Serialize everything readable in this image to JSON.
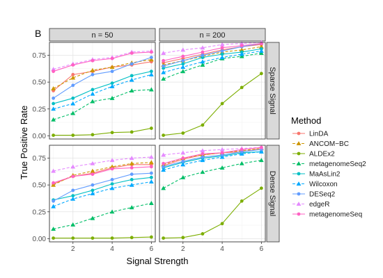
{
  "figure": {
    "panel_tag": "B",
    "ylabel": "True Positive Rate",
    "xlabel": "Signal Strength",
    "legend_title": "Method"
  },
  "chart_data": {
    "type": "line",
    "x": [
      1,
      2,
      3,
      4,
      5,
      6
    ],
    "xlim": [
      0.8,
      6.2
    ],
    "ylim": [
      -0.03,
      0.87
    ],
    "xticks": [
      "2",
      "4",
      "6"
    ],
    "xtick_values": [
      2,
      4,
      6
    ],
    "yticks": [
      "0.00",
      "0.25",
      "0.50",
      "0.75"
    ],
    "ytick_values": [
      0,
      0.25,
      0.5,
      0.75
    ],
    "grid": true,
    "legend_position": "right",
    "columns": [
      "n = 50",
      "n = 200"
    ],
    "rows": [
      "Sparse Signal",
      "Dense Signal"
    ],
    "series": [
      {
        "name": "LinDA",
        "color": "#F8766D",
        "marker": "circle",
        "dash": false
      },
      {
        "name": "ANCOM−BC",
        "color": "#CD9600",
        "marker": "triangle",
        "dash": true
      },
      {
        "name": "ALDEx2",
        "color": "#7CAE00",
        "marker": "circle",
        "dash": false
      },
      {
        "name": "metagenomeSeq2",
        "color": "#00BE67",
        "marker": "triangle",
        "dash": true
      },
      {
        "name": "MaAsLin2",
        "color": "#00BFC4",
        "marker": "circle",
        "dash": false
      },
      {
        "name": "Wilcoxon",
        "color": "#00A9FF",
        "marker": "triangle",
        "dash": true
      },
      {
        "name": "DESeq2",
        "color": "#619CFF",
        "marker": "circle",
        "dash": false
      },
      {
        "name": "edgeR",
        "color": "#E58AFF",
        "marker": "triangle",
        "dash": true
      },
      {
        "name": "metagenomeSeq",
        "color": "#FF61C3",
        "marker": "circle",
        "dash": false
      }
    ],
    "panels": [
      {
        "column": "n = 50",
        "row": "Sparse Signal",
        "values": {
          "LinDA": [
            0.42,
            0.57,
            0.6,
            0.64,
            0.66,
            0.69
          ],
          "ANCOM−BC": [
            0.44,
            0.54,
            0.61,
            0.64,
            0.68,
            0.71
          ],
          "ALDEx2": [
            0.005,
            0.005,
            0.01,
            0.03,
            0.035,
            0.07
          ],
          "metagenomeSeq2": [
            0.15,
            0.21,
            0.32,
            0.35,
            0.42,
            0.43
          ],
          "MaAsLin2": [
            0.3,
            0.35,
            0.43,
            0.49,
            0.56,
            0.6
          ],
          "Wilcoxon": [
            0.25,
            0.3,
            0.39,
            0.46,
            0.52,
            0.57
          ],
          "DESeq2": [
            0.35,
            0.47,
            0.57,
            0.6,
            0.67,
            0.73
          ],
          "edgeR": [
            0.62,
            0.67,
            0.71,
            0.73,
            0.78,
            0.79
          ],
          "metagenomeSeq": [
            0.6,
            0.66,
            0.7,
            0.72,
            0.77,
            0.78
          ]
        }
      },
      {
        "column": "n = 200",
        "row": "Sparse Signal",
        "values": {
          "LinDA": [
            0.68,
            0.72,
            0.76,
            0.8,
            0.83,
            0.85
          ],
          "ANCOM−BC": [
            0.66,
            0.7,
            0.74,
            0.78,
            0.8,
            0.83
          ],
          "ALDEx2": [
            0.005,
            0.025,
            0.1,
            0.3,
            0.45,
            0.58
          ],
          "metagenomeSeq2": [
            0.53,
            0.6,
            0.66,
            0.72,
            0.74,
            0.77
          ],
          "MaAsLin2": [
            0.63,
            0.67,
            0.73,
            0.76,
            0.78,
            0.81
          ],
          "Wilcoxon": [
            0.59,
            0.64,
            0.69,
            0.73,
            0.76,
            0.79
          ],
          "DESeq2": [
            0.65,
            0.7,
            0.75,
            0.79,
            0.83,
            0.86
          ],
          "edgeR": [
            0.77,
            0.8,
            0.82,
            0.85,
            0.86,
            0.87
          ],
          "metagenomeSeq": [
            0.7,
            0.74,
            0.78,
            0.82,
            0.84,
            0.86
          ]
        }
      },
      {
        "column": "n = 50",
        "row": "Dense Signal",
        "values": {
          "LinDA": [
            0.51,
            0.58,
            0.61,
            0.66,
            0.69,
            0.69
          ],
          "ANCOM−BC": [
            0.5,
            0.59,
            0.63,
            0.67,
            0.7,
            0.71
          ],
          "ALDEx2": [
            0.005,
            0.005,
            0.005,
            0.005,
            0.01,
            0.015
          ],
          "metagenomeSeq2": [
            0.09,
            0.13,
            0.19,
            0.25,
            0.29,
            0.33
          ],
          "MaAsLin2": [
            0.36,
            0.4,
            0.45,
            0.51,
            0.55,
            0.57
          ],
          "Wilcoxon": [
            0.3,
            0.37,
            0.42,
            0.47,
            0.5,
            0.53
          ],
          "DESeq2": [
            0.35,
            0.45,
            0.5,
            0.55,
            0.6,
            0.61
          ],
          "edgeR": [
            0.63,
            0.67,
            0.7,
            0.73,
            0.75,
            0.76
          ],
          "metagenomeSeq": [
            0.52,
            0.58,
            0.6,
            0.65,
            0.66,
            0.67
          ]
        }
      },
      {
        "column": "n = 200",
        "row": "Dense Signal",
        "values": {
          "LinDA": [
            0.68,
            0.74,
            0.78,
            0.8,
            0.81,
            0.84
          ],
          "ANCOM−BC": [
            0.69,
            0.75,
            0.78,
            0.8,
            0.82,
            0.84
          ],
          "ALDEx2": [
            0.005,
            0.01,
            0.045,
            0.14,
            0.35,
            0.47
          ],
          "metagenomeSeq2": [
            0.47,
            0.57,
            0.62,
            0.66,
            0.7,
            0.73
          ],
          "MaAsLin2": [
            0.66,
            0.71,
            0.75,
            0.77,
            0.8,
            0.81
          ],
          "Wilcoxon": [
            0.64,
            0.69,
            0.73,
            0.76,
            0.79,
            0.81
          ],
          "DESeq2": [
            0.67,
            0.72,
            0.76,
            0.78,
            0.81,
            0.83
          ],
          "edgeR": [
            0.78,
            0.8,
            0.82,
            0.83,
            0.84,
            0.85
          ],
          "metagenomeSeq": [
            0.7,
            0.75,
            0.79,
            0.8,
            0.83,
            0.85
          ]
        }
      }
    ]
  }
}
